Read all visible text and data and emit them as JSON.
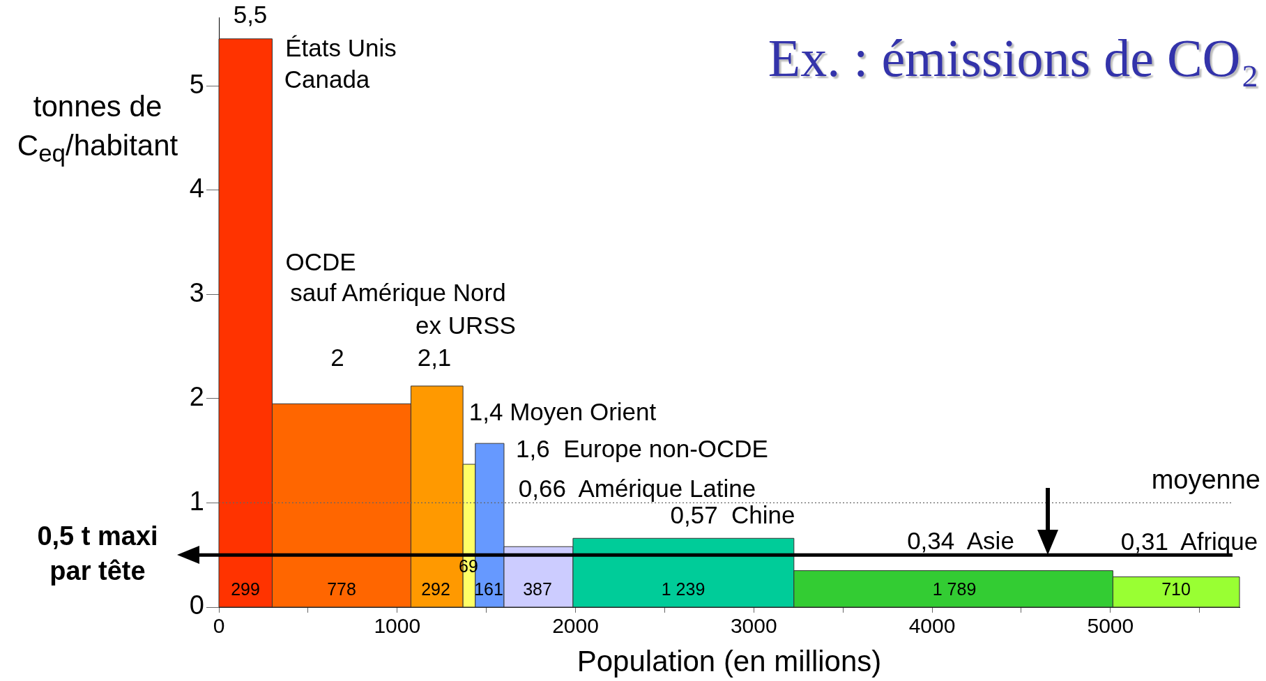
{
  "chart_data": {
    "type": "histogram",
    "title": "Ex. : émissions de CO₂",
    "xlabel": "Population (en millions)",
    "ylabel": "tonnes de C$_{eq}$/habitant",
    "bins": [
      0,
      299,
      1077,
      1369,
      1438,
      1599,
      1986,
      3225,
      5014,
      5724
    ],
    "values": [
      5.45,
      1.95,
      2.12,
      1.37,
      1.57,
      0.58,
      0.66,
      0.35,
      0.29
    ],
    "colors": [
      "#ff3300",
      "#ff6600",
      "#ff9900",
      "#ffff66",
      "#6699ff",
      "#ccccff",
      "#00cc99",
      "#33cc33",
      "#99ff33"
    ],
    "xlim": [
      0,
      5724
    ],
    "ylim": [
      0,
      5.65
    ],
    "xticks": [
      0,
      {
        "value": 500,
        "label": null
      },
      1000,
      {
        "value": 1500,
        "label": null
      },
      2000,
      {
        "value": 2500,
        "label": null
      },
      3000,
      {
        "value": 3500,
        "label": null
      },
      4000,
      {
        "value": 4500,
        "label": null
      },
      5000,
      {
        "value": 5500,
        "label": null
      }
    ],
    "yticks": [
      0,
      1,
      2,
      3,
      4,
      5
    ],
    "grid": false,
    "legend": false,
    "ref_lines": [
      {
        "axis": "y",
        "value": 1,
        "label": "moyenne",
        "color": "#666666",
        "line_style": "dotted"
      },
      {
        "axis": "y",
        "value": 0.5,
        "label": "0,5 t maxi\npar tête",
        "color": "#000000",
        "line_style": "solid"
      }
    ],
    "annotations": [
      "5,5",
      "États Unis",
      "Canada",
      "OCDE",
      "sauf Amérique Nord",
      "ex URSS",
      "2",
      "2,1",
      "1,4 Moyen Orient",
      "1,6  Europe non-OCDE",
      "0,66  Amérique Latine",
      "0,57  Chine",
      "0,34  Asie",
      "0,31  Afrique",
      "299",
      "778",
      "292",
      "69",
      "161",
      "387",
      "1 239",
      "1 789",
      "710"
    ]
  }
}
